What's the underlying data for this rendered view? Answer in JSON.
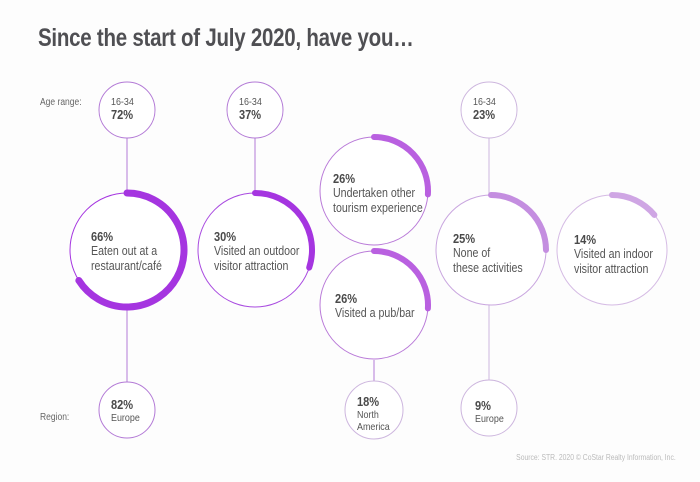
{
  "title": "Since the start of July 2020, have you…",
  "labels": {
    "age_range": "Age range:",
    "region": "Region:"
  },
  "colors": {
    "strong": "#a535e0",
    "medium": "#b960e0",
    "light": "#c48ee0",
    "lighter": "#cfa6e4",
    "thin": "#b985d6"
  },
  "activities": [
    {
      "pct": "66%",
      "line1": "Eaten out at a",
      "line2": "restaurant/café",
      "age": {
        "range": "16-34",
        "pct": "72%"
      },
      "region": {
        "pct": "82%",
        "line1": "Europe",
        "line2": ""
      }
    },
    {
      "pct": "30%",
      "line1": "Visited an outdoor",
      "line2": "visitor attraction",
      "age": {
        "range": "16-34",
        "pct": "37%"
      }
    },
    {
      "pct": "26%",
      "line1": "Undertaken other",
      "line2": "tourism experience"
    },
    {
      "pct": "26%",
      "line1": "Visited a pub/bar",
      "line2": "",
      "region": {
        "pct": "18%",
        "line1": "North",
        "line2": "America"
      }
    },
    {
      "pct": "25%",
      "line1": "None of",
      "line2": "these activities",
      "age": {
        "range": "16-34",
        "pct": "23%"
      },
      "region": {
        "pct": "9%",
        "line1": "Europe",
        "line2": ""
      }
    },
    {
      "pct": "14%",
      "line1": "Visited an indoor",
      "line2": "visitor attraction"
    }
  ],
  "source": "Source: STR. 2020 © CoStar Realty Information, Inc.",
  "chart_data": {
    "type": "radial-progress",
    "title": "Since the start of July 2020, have you…",
    "categories": [
      "Eaten out at a restaurant/café",
      "Visited an outdoor visitor attraction",
      "Undertaken other tourism experience",
      "Visited a pub/bar",
      "None of these activities",
      "Visited an indoor visitor attraction"
    ],
    "values": [
      66,
      30,
      26,
      26,
      25,
      14
    ],
    "age_16_34": {
      "Eaten out at a restaurant/café": 72,
      "Visited an outdoor visitor attraction": 37,
      "None of these activities": 23
    },
    "region": {
      "Eaten out at a restaurant/café": {
        "Europe": 82
      },
      "Visited a pub/bar": {
        "North America": 18
      },
      "None of these activities": {
        "Europe": 9
      }
    },
    "unit": "%"
  }
}
